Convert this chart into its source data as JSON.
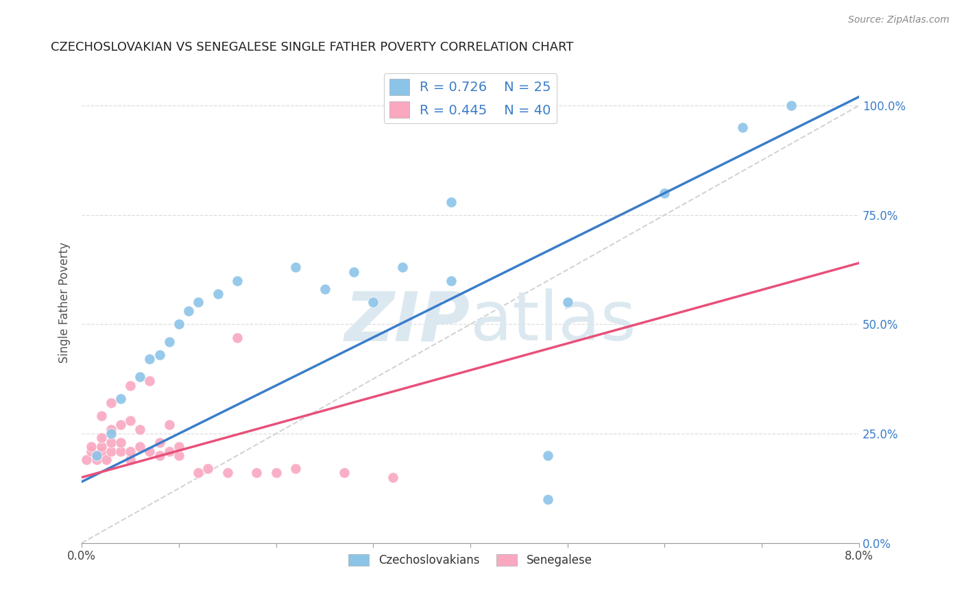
{
  "title": "CZECHOSLOVAKIAN VS SENEGALESE SINGLE FATHER POVERTY CORRELATION CHART",
  "source": "Source: ZipAtlas.com",
  "ylabel": "Single Father Poverty",
  "xlim": [
    0.0,
    0.08
  ],
  "ylim": [
    0.0,
    1.1
  ],
  "yticks": [
    0.0,
    0.25,
    0.5,
    0.75,
    1.0
  ],
  "ytick_labels": [
    "0.0%",
    "25.0%",
    "50.0%",
    "75.0%",
    "100.0%"
  ],
  "xticks": [
    0.0,
    0.01,
    0.02,
    0.03,
    0.04,
    0.05,
    0.06,
    0.07,
    0.08
  ],
  "xtick_labels": [
    "0.0%",
    "",
    "",
    "",
    "",
    "",
    "",
    "",
    "8.0%"
  ],
  "legend_R1": "0.726",
  "legend_N1": "25",
  "legend_R2": "0.445",
  "legend_N2": "40",
  "blue_color": "#8cc4e8",
  "pink_color": "#f9a8c0",
  "blue_line_color": "#3a7dc9",
  "pink_line_color": "#e8507a",
  "diag_line_color": "#c8c8c8",
  "title_color": "#222222",
  "axis_label_color": "#555555",
  "right_tick_color": "#3a7dc9",
  "watermark_color": "#dce8f0",
  "blue_scatter": [
    [
      0.0015,
      0.2
    ],
    [
      0.003,
      0.25
    ],
    [
      0.004,
      0.33
    ],
    [
      0.006,
      0.38
    ],
    [
      0.007,
      0.42
    ],
    [
      0.008,
      0.43
    ],
    [
      0.009,
      0.46
    ],
    [
      0.01,
      0.5
    ],
    [
      0.011,
      0.53
    ],
    [
      0.012,
      0.55
    ],
    [
      0.014,
      0.57
    ],
    [
      0.016,
      0.6
    ],
    [
      0.022,
      0.63
    ],
    [
      0.025,
      0.58
    ],
    [
      0.028,
      0.62
    ],
    [
      0.03,
      0.55
    ],
    [
      0.033,
      0.63
    ],
    [
      0.038,
      0.6
    ],
    [
      0.038,
      0.78
    ],
    [
      0.048,
      0.2
    ],
    [
      0.048,
      0.1
    ],
    [
      0.05,
      0.55
    ],
    [
      0.06,
      0.8
    ],
    [
      0.068,
      0.95
    ],
    [
      0.073,
      1.0
    ]
  ],
  "pink_scatter": [
    [
      0.0005,
      0.19
    ],
    [
      0.001,
      0.21
    ],
    [
      0.001,
      0.22
    ],
    [
      0.0015,
      0.19
    ],
    [
      0.0015,
      0.2
    ],
    [
      0.002,
      0.21
    ],
    [
      0.002,
      0.22
    ],
    [
      0.002,
      0.24
    ],
    [
      0.002,
      0.29
    ],
    [
      0.0025,
      0.19
    ],
    [
      0.003,
      0.21
    ],
    [
      0.003,
      0.23
    ],
    [
      0.003,
      0.26
    ],
    [
      0.003,
      0.32
    ],
    [
      0.004,
      0.21
    ],
    [
      0.004,
      0.23
    ],
    [
      0.004,
      0.27
    ],
    [
      0.005,
      0.19
    ],
    [
      0.005,
      0.21
    ],
    [
      0.005,
      0.28
    ],
    [
      0.005,
      0.36
    ],
    [
      0.006,
      0.22
    ],
    [
      0.006,
      0.26
    ],
    [
      0.007,
      0.21
    ],
    [
      0.007,
      0.37
    ],
    [
      0.008,
      0.2
    ],
    [
      0.008,
      0.23
    ],
    [
      0.009,
      0.21
    ],
    [
      0.009,
      0.27
    ],
    [
      0.01,
      0.2
    ],
    [
      0.01,
      0.22
    ],
    [
      0.012,
      0.16
    ],
    [
      0.013,
      0.17
    ],
    [
      0.015,
      0.16
    ],
    [
      0.016,
      0.47
    ],
    [
      0.018,
      0.16
    ],
    [
      0.02,
      0.16
    ],
    [
      0.022,
      0.17
    ],
    [
      0.027,
      0.16
    ],
    [
      0.032,
      0.15
    ]
  ],
  "blue_line_x": [
    0.0,
    0.08
  ],
  "blue_line_y": [
    0.14,
    1.02
  ],
  "pink_line_x": [
    0.0,
    0.08
  ],
  "pink_line_y": [
    0.15,
    0.64
  ],
  "diag_line_x": [
    0.0,
    0.08
  ],
  "diag_line_y": [
    0.0,
    1.0
  ]
}
